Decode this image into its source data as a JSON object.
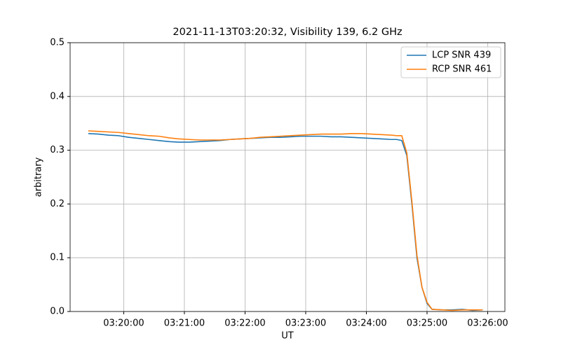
{
  "chart_data": {
    "type": "line",
    "title": "2021-11-13T03:20:32, Visibility 139, 6.2 GHz",
    "xlabel": "UT",
    "ylabel": "arbitrary",
    "x": [
      "03:19:25",
      "03:19:35",
      "03:19:45",
      "03:19:55",
      "03:20:05",
      "03:20:15",
      "03:20:25",
      "03:20:35",
      "03:20:45",
      "03:20:55",
      "03:21:05",
      "03:21:15",
      "03:21:25",
      "03:21:35",
      "03:21:45",
      "03:21:55",
      "03:22:05",
      "03:22:15",
      "03:22:25",
      "03:22:35",
      "03:22:45",
      "03:22:55",
      "03:23:05",
      "03:23:15",
      "03:23:25",
      "03:23:35",
      "03:23:45",
      "03:23:55",
      "03:24:05",
      "03:24:15",
      "03:24:25",
      "03:24:30",
      "03:24:35",
      "03:24:40",
      "03:24:45",
      "03:24:50",
      "03:24:55",
      "03:25:00",
      "03:25:05",
      "03:25:15",
      "03:25:25",
      "03:25:35",
      "03:25:45",
      "03:25:55"
    ],
    "series": [
      {
        "name": "LCP SNR 439",
        "color": "#1f77b4",
        "values": [
          0.331,
          0.33,
          0.328,
          0.327,
          0.324,
          0.322,
          0.32,
          0.318,
          0.316,
          0.315,
          0.315,
          0.316,
          0.317,
          0.318,
          0.32,
          0.321,
          0.322,
          0.323,
          0.324,
          0.324,
          0.325,
          0.326,
          0.326,
          0.326,
          0.325,
          0.325,
          0.324,
          0.323,
          0.322,
          0.321,
          0.32,
          0.32,
          0.318,
          0.29,
          0.2,
          0.1,
          0.045,
          0.015,
          0.004,
          0.003,
          0.003,
          0.004,
          0.002,
          0.003
        ]
      },
      {
        "name": "RCP SNR 461",
        "color": "#ff7f0e",
        "values": [
          0.336,
          0.335,
          0.334,
          0.333,
          0.331,
          0.329,
          0.327,
          0.326,
          0.323,
          0.321,
          0.32,
          0.319,
          0.319,
          0.319,
          0.32,
          0.321,
          0.322,
          0.324,
          0.325,
          0.326,
          0.327,
          0.328,
          0.329,
          0.33,
          0.33,
          0.33,
          0.331,
          0.331,
          0.33,
          0.329,
          0.328,
          0.327,
          0.327,
          0.295,
          0.205,
          0.105,
          0.045,
          0.017,
          0.004,
          0.003,
          0.002,
          0.003,
          0.003,
          0.003
        ]
      }
    ],
    "xlim": [
      "03:19:07",
      "03:26:17"
    ],
    "xticks": [
      "03:20:00",
      "03:21:00",
      "03:22:00",
      "03:23:00",
      "03:24:00",
      "03:25:00",
      "03:26:00"
    ],
    "ylim": [
      0,
      0.5
    ],
    "yticks": [
      {
        "value": 0,
        "label": "0.0"
      },
      0.1,
      0.2,
      0.3,
      0.4,
      0.5
    ],
    "grid": true,
    "legend": "upper-right"
  }
}
